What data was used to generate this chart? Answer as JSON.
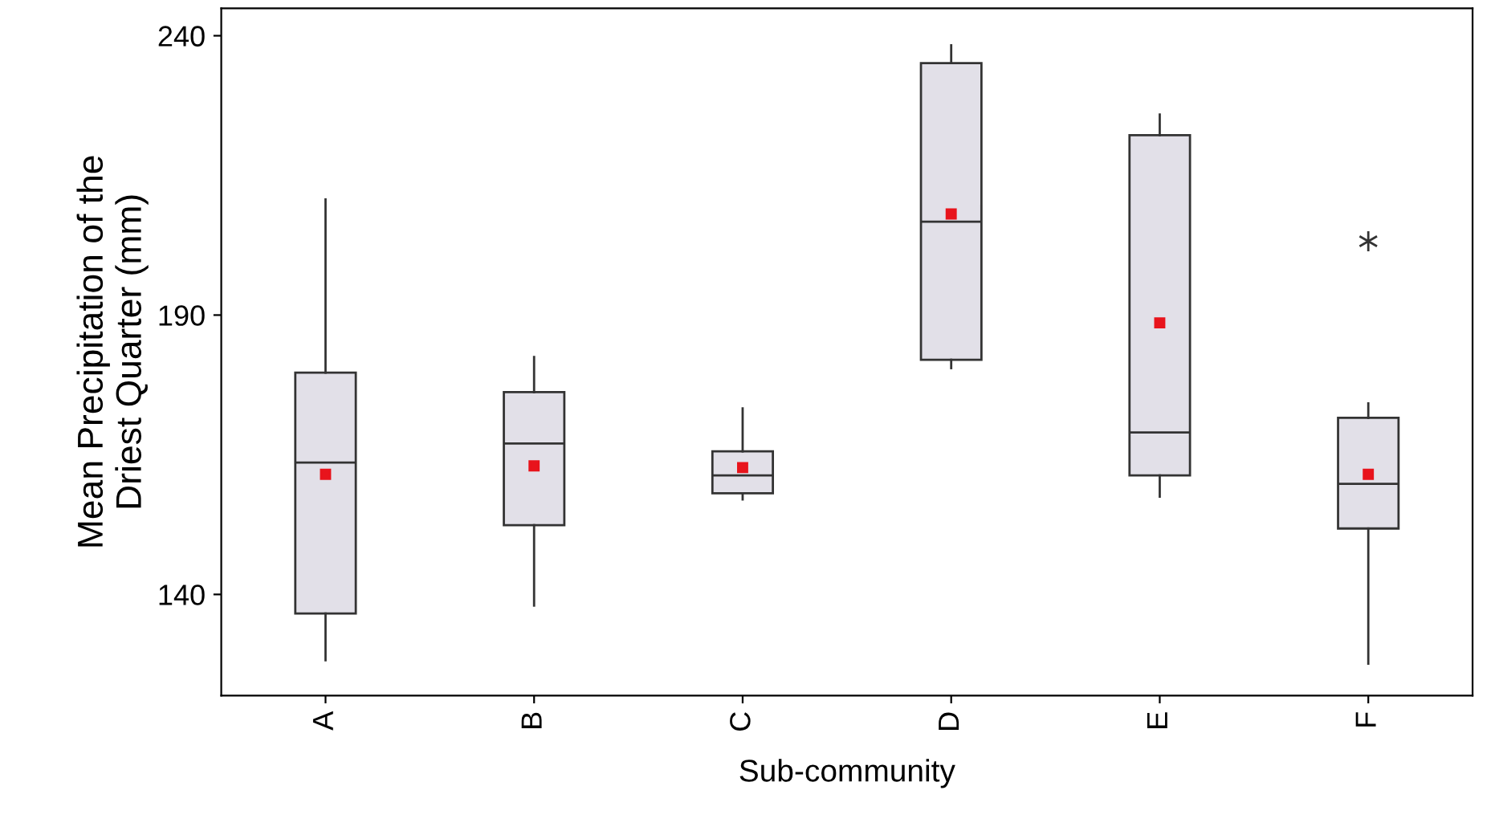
{
  "chart_data": {
    "type": "box",
    "xlabel": "Sub-community",
    "ylabel": "Mean Precipitation of the\nDriest Quarter (mm)",
    "categories": [
      "A",
      "B",
      "C",
      "D",
      "E",
      "F"
    ],
    "color": "#e2e0e8",
    "boxes": [
      {
        "low": 128.2,
        "q1": 136.6,
        "median": 163.6,
        "q3": 179.7,
        "high": 210.7,
        "mean": 161.5
      },
      {
        "low": 138,
        "q1": 152.4,
        "median": 167,
        "q3": 176.2,
        "high": 182.5,
        "mean": 163
      },
      {
        "low": 157,
        "q1": 158.1,
        "median": 161.3,
        "q3": 165.6,
        "high": 173.3,
        "mean": 162.7
      },
      {
        "low": 180.5,
        "q1": 182,
        "median": 206.7,
        "q3": 235.1,
        "high": 238.3,
        "mean": 208.1
      },
      {
        "low": 157.5,
        "q1": 161.3,
        "median": 169,
        "q3": 222.2,
        "high": 225.9,
        "mean": 188.6
      },
      {
        "low": 127.6,
        "q1": 151.8,
        "median": 159.8,
        "q3": 171.6,
        "high": 174.2,
        "mean": 161.5,
        "outliers": [
          203.2
        ]
      }
    ],
    "ylim": [
      121.9,
      244.9
    ],
    "yticks": [
      140,
      190,
      240
    ],
    "grid": false
  }
}
